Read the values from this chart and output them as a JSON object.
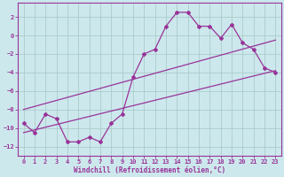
{
  "xlabel": "Windchill (Refroidissement éolien,°C)",
  "xlim": [
    -0.5,
    23.5
  ],
  "ylim": [
    -13,
    3.5
  ],
  "yticks": [
    2,
    0,
    -2,
    -4,
    -6,
    -8,
    -10,
    -12
  ],
  "xticks": [
    0,
    1,
    2,
    3,
    4,
    5,
    6,
    7,
    8,
    9,
    10,
    11,
    12,
    13,
    14,
    15,
    16,
    17,
    18,
    19,
    20,
    21,
    22,
    23
  ],
  "bg_color": "#cce8ec",
  "grid_color": "#aacccc",
  "line_color": "#993399",
  "data_x": [
    0,
    1,
    2,
    3,
    4,
    5,
    6,
    7,
    8,
    9,
    10,
    11,
    12,
    13,
    14,
    15,
    16,
    17,
    18,
    19,
    20,
    21,
    22,
    23
  ],
  "data_y": [
    -9.5,
    -10.5,
    -8.5,
    -9.0,
    -11.5,
    -11.5,
    -11.0,
    -11.5,
    -9.5,
    -8.5,
    -4.5,
    -2.0,
    -1.5,
    1.0,
    2.5,
    2.5,
    1.0,
    1.0,
    -0.3,
    1.2,
    -0.8,
    -1.5,
    -3.5,
    -4.0
  ],
  "upper_line_x": [
    0,
    23
  ],
  "upper_line_y": [
    -8.0,
    -0.5
  ],
  "lower_line_x": [
    0,
    23
  ],
  "lower_line_y": [
    -10.5,
    -3.8
  ]
}
